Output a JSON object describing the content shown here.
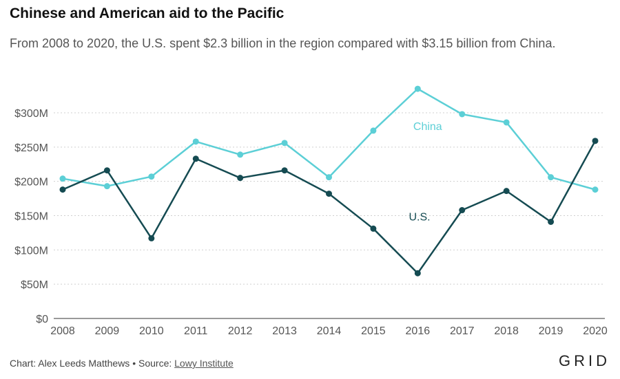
{
  "header": {
    "title": "Chinese and American aid to the Pacific",
    "subtitle": "From 2008 to 2020, the U.S. spent $2.3 billion in the region compared with $3.15 billion from China."
  },
  "footer": {
    "credit": "Chart: Alex Leeds Matthews • Source: ",
    "source": "Lowy Institute",
    "logo": "GRID"
  },
  "chart_data": {
    "type": "line",
    "title": "Chinese and American aid to the Pacific",
    "x": [
      "2008",
      "2009",
      "2010",
      "2011",
      "2012",
      "2013",
      "2014",
      "2015",
      "2016",
      "2017",
      "2018",
      "2019",
      "2020"
    ],
    "ylim": [
      0,
      340
    ],
    "yticks": [
      0,
      50,
      100,
      150,
      200,
      250,
      300
    ],
    "ytick_labels": [
      "$0",
      "$50M",
      "$100M",
      "$150M",
      "$200M",
      "$250M",
      "$300M"
    ],
    "grid": true,
    "series": [
      {
        "name": "China",
        "color": "#5ccfd6",
        "values": [
          204,
          193,
          207,
          258,
          239,
          256,
          206,
          274,
          335,
          298,
          286,
          206,
          188
        ],
        "label_at": 7.9,
        "label_value": 275
      },
      {
        "name": "U.S.",
        "color": "#154b52",
        "values": [
          188,
          216,
          117,
          233,
          205,
          216,
          182,
          131,
          66,
          158,
          186,
          141,
          259
        ],
        "label_at": 7.8,
        "label_value": 143
      }
    ]
  }
}
